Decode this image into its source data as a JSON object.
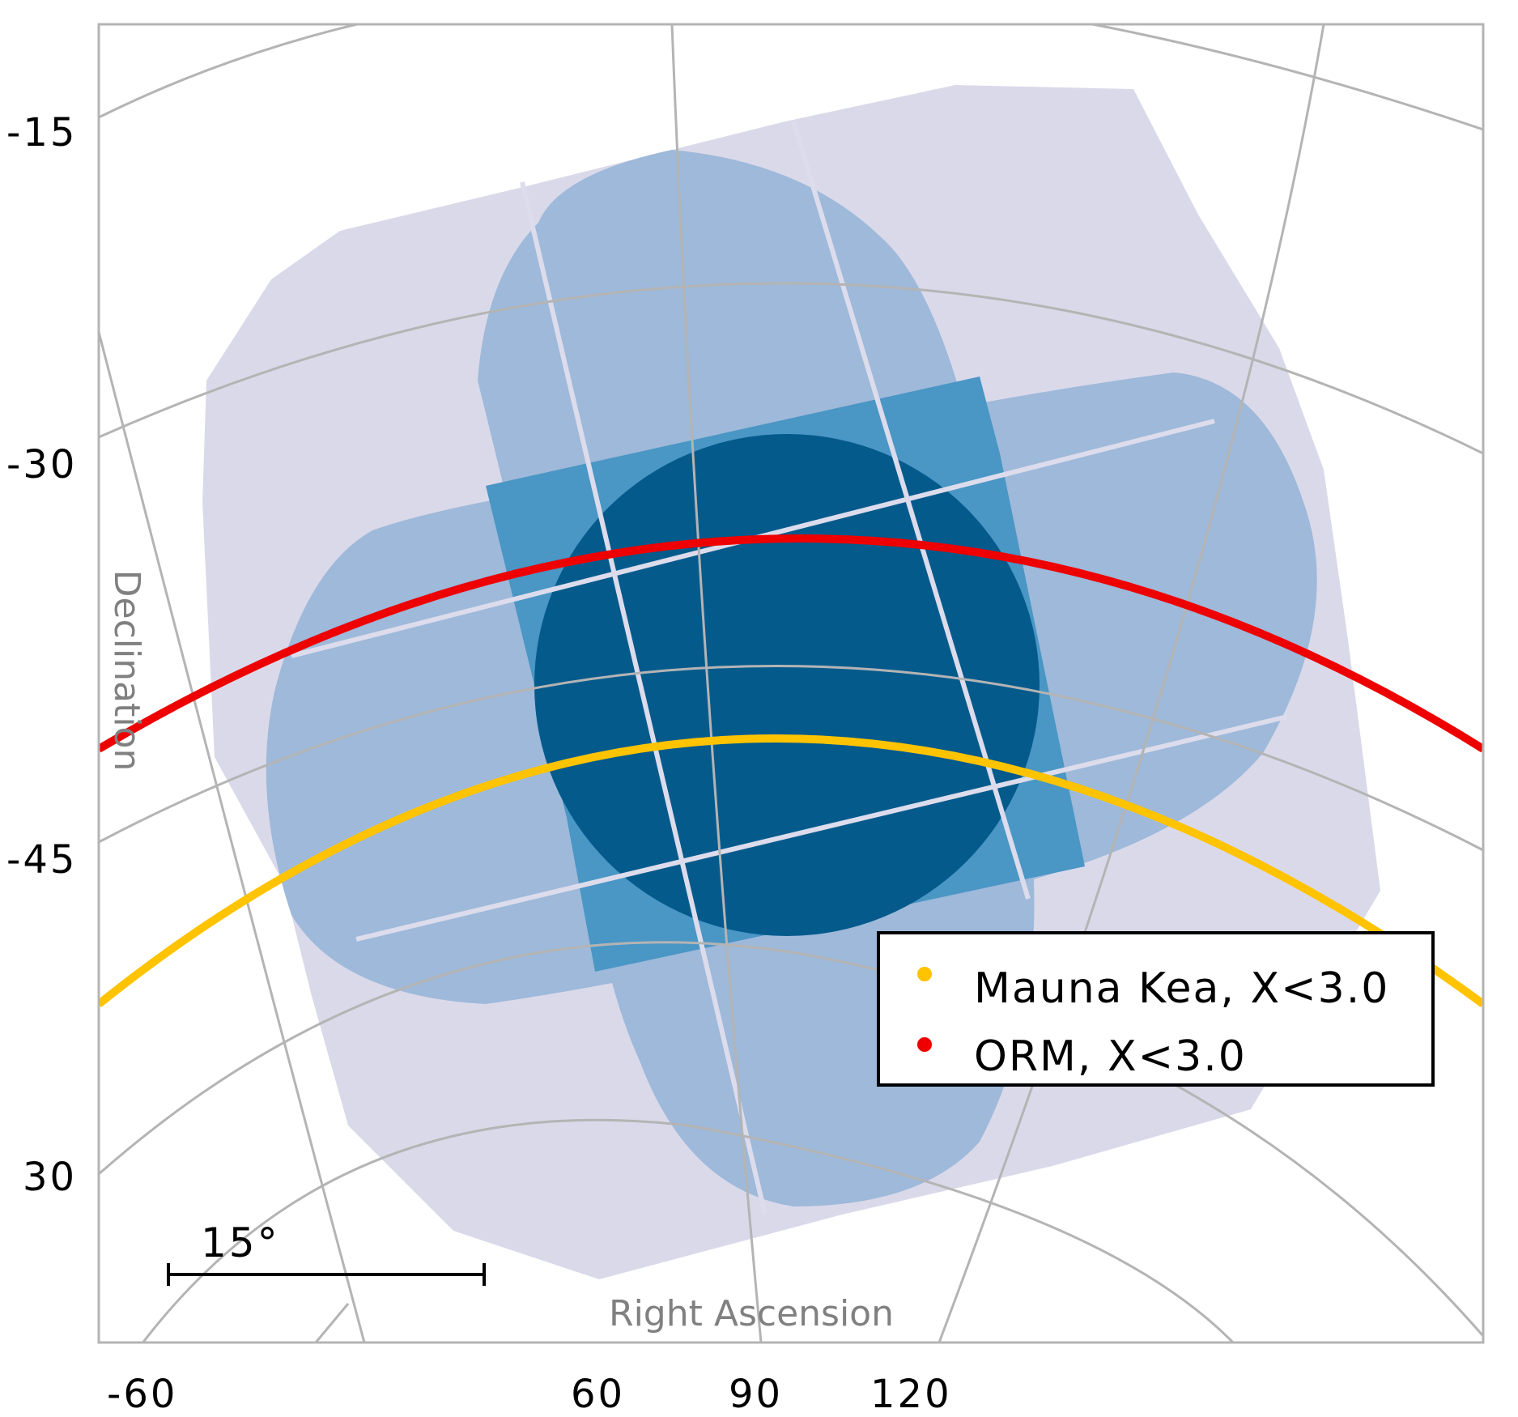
{
  "chart_data": {
    "type": "sky-map",
    "projection": "orthographic sky projection with curved RA/Dec graticule",
    "xlabel": "Right Ascension",
    "ylabel": "Declination",
    "ra_tick_labels": [
      "-60",
      "60",
      "90",
      "120"
    ],
    "dec_tick_labels": [
      "-15",
      "-30",
      "-45",
      "30"
    ],
    "scale_bar": {
      "label": "15°",
      "length_deg": 15
    },
    "coverage_levels": [
      {
        "name": "coverage-1",
        "color": "#dad9ea"
      },
      {
        "name": "coverage-2",
        "color": "#9eb9d9"
      },
      {
        "name": "coverage-3",
        "color": "#4a96c5"
      },
      {
        "name": "coverage-4",
        "color": "#055a8c"
      }
    ],
    "series": [
      {
        "name": "Mauna Kea, X<3.0",
        "color": "#ffc300",
        "type": "airmass-limit-curve"
      },
      {
        "name": "ORM, X<3.0",
        "color": "#ee0000",
        "type": "airmass-limit-curve"
      }
    ],
    "legend": {
      "position": "lower-right",
      "entries": [
        "Mauna Kea, X<3.0",
        "ORM, X<3.0"
      ]
    },
    "grid": true,
    "grid_color": "#b4b4b4"
  }
}
